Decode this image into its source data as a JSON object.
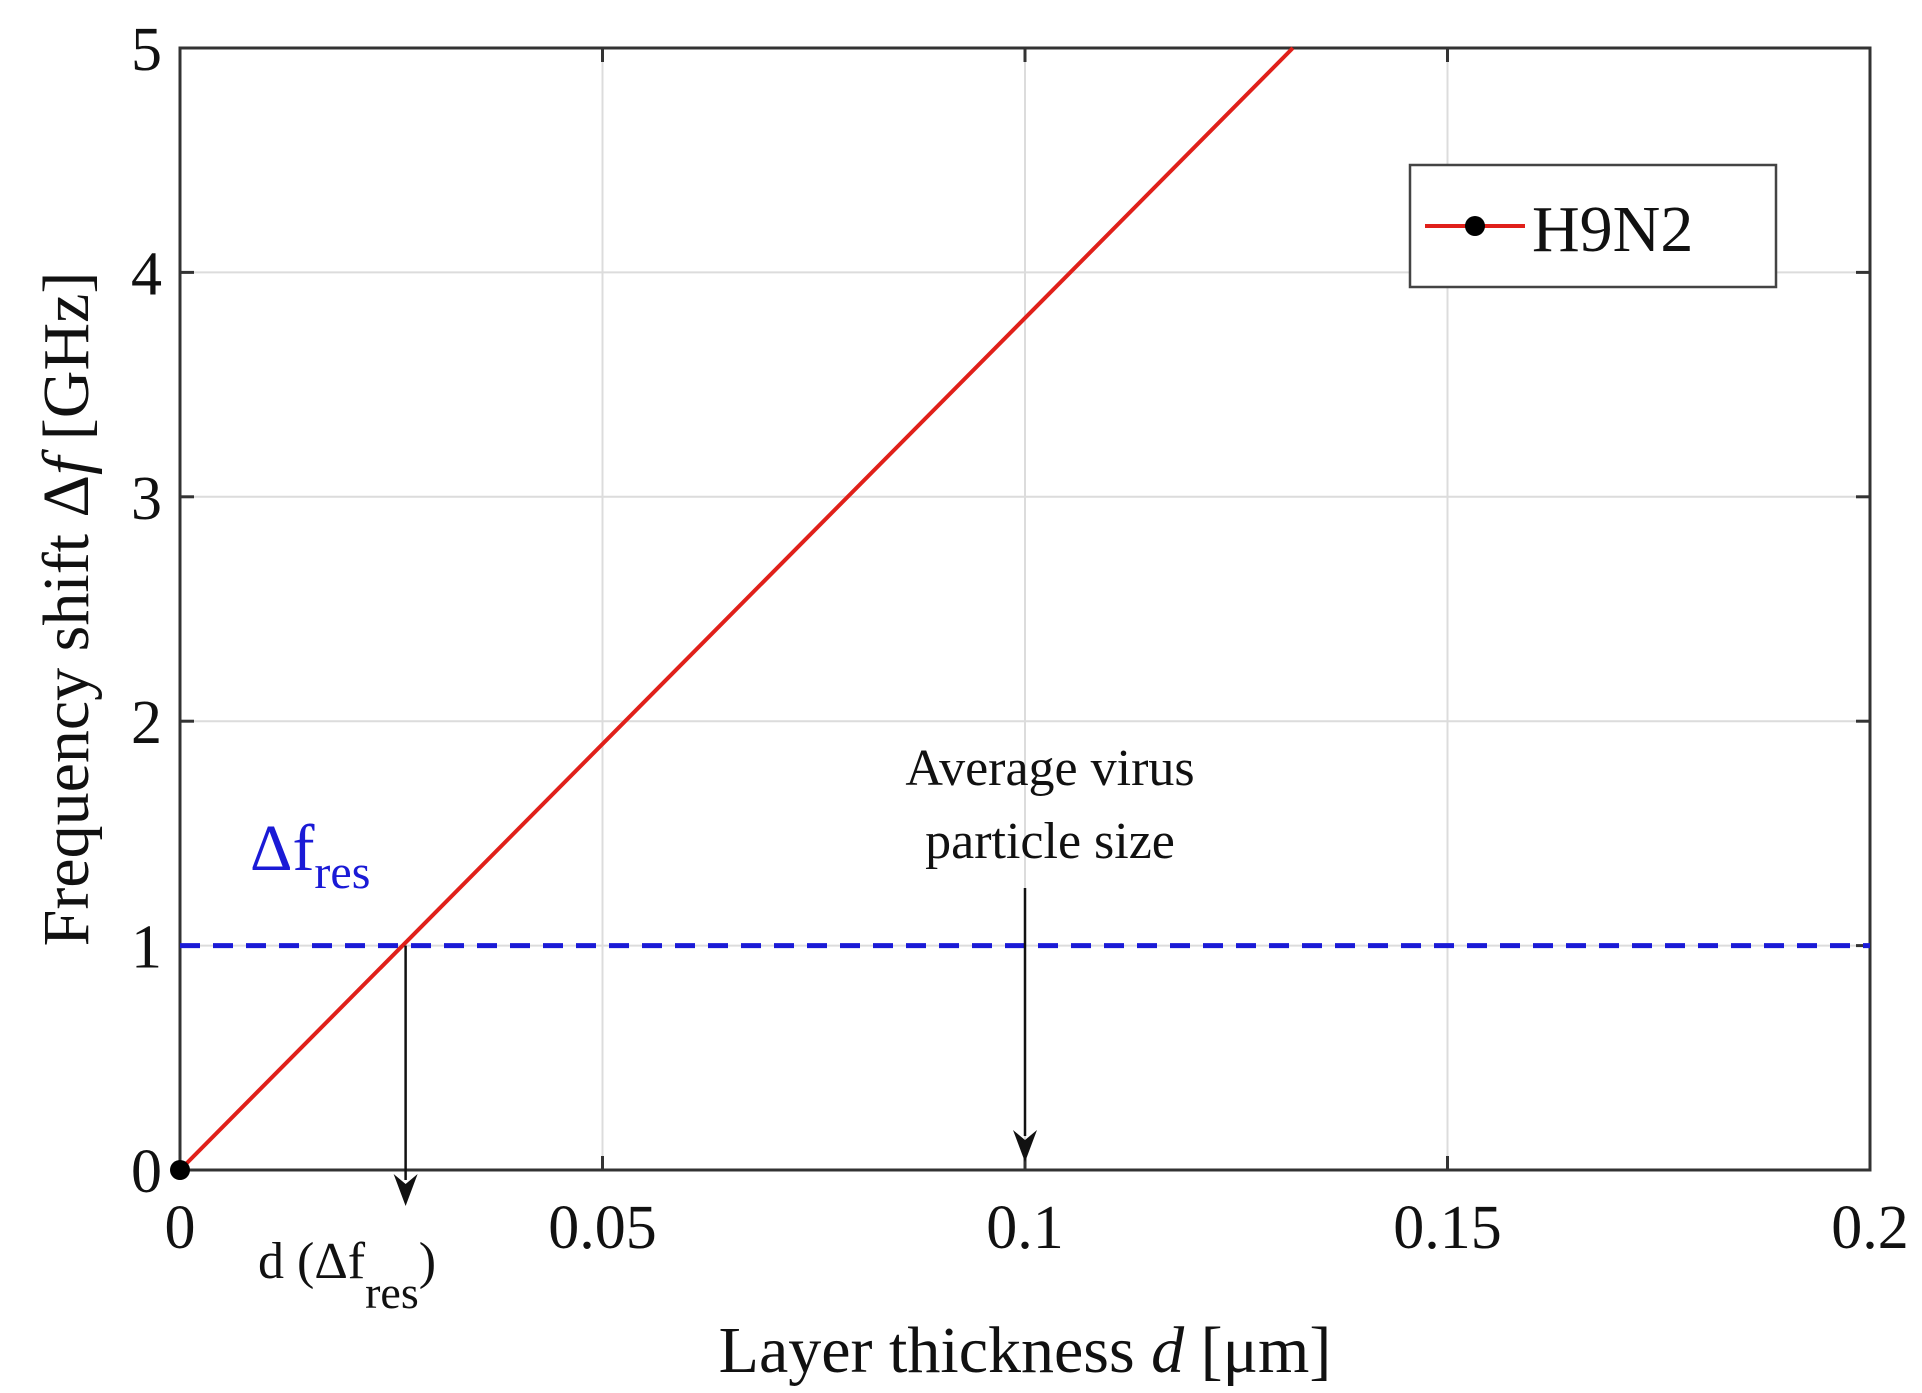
{
  "chart_data": {
    "type": "line",
    "title": "",
    "xlabel": "Layer thickness d [μm]",
    "xlabel_parts": {
      "text": "Layer thickness ",
      "var": "d",
      "unit": " [μm]"
    },
    "ylabel": "Frequency shift Δf [GHz]",
    "ylabel_parts": {
      "text": "Frequency shift Δ",
      "var": "f",
      "unit": " [GHz]"
    },
    "xlim": [
      0,
      0.2
    ],
    "ylim": [
      0,
      5
    ],
    "grid": true,
    "xticks": [
      0,
      0.05,
      0.1,
      0.15,
      0.2
    ],
    "xtick_labels": [
      "0",
      "0.05",
      "0.1",
      "0.15",
      "0.2"
    ],
    "yticks": [
      0,
      1,
      2,
      3,
      4,
      5
    ],
    "ytick_labels": [
      "0",
      "1",
      "2",
      "3",
      "4",
      "5"
    ],
    "series": [
      {
        "name": "H9N2",
        "color": "#e0201a",
        "marker": "circle",
        "x": [
          0,
          0.1317
        ],
        "y": [
          0,
          5
        ]
      }
    ],
    "legend": {
      "position": "top-right",
      "entries": [
        "H9N2"
      ]
    },
    "threshold": {
      "y": 1,
      "color": "#1a1ad6",
      "style": "dashed",
      "label_main": "Δf",
      "label_sub": "res"
    },
    "annotations": [
      {
        "x": 0.0267,
        "from_y": 1,
        "label_main": "d (Δf",
        "label_sub": "res",
        "label_close": ")"
      },
      {
        "x": 0.1,
        "label_line1": "Average virus",
        "label_line2": "particle size"
      }
    ],
    "colors": {
      "axis": "#333333",
      "grid": "#dcdcdc",
      "arrow": "#111111"
    }
  }
}
